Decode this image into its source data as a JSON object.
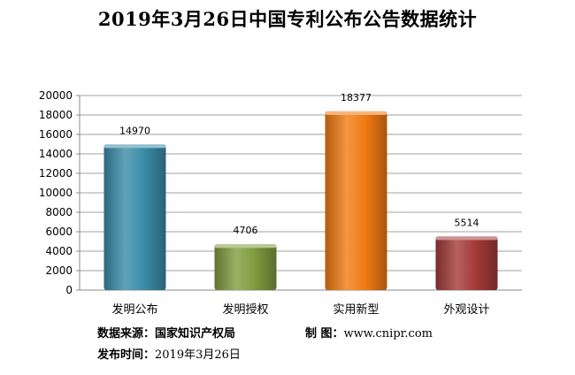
{
  "chart_data": {
    "type": "bar",
    "title": "2019年3月26日中国专利公布公告数据统计",
    "categories": [
      "发明公布",
      "发明授权",
      "实用新型",
      "外观设计"
    ],
    "values": [
      14970,
      4706,
      18377,
      5514
    ],
    "colors": [
      "#3b8ca8",
      "#7f9c3f",
      "#f07a12",
      "#a33a38"
    ],
    "ylim": [
      0,
      20000
    ],
    "yticks": [
      0,
      2000,
      4000,
      6000,
      8000,
      10000,
      12000,
      14000,
      16000,
      18000,
      20000
    ],
    "xlabel": "",
    "ylabel": "",
    "grid": true
  },
  "footer": {
    "source_label": "数据来源：",
    "source_value": "国家知识产权局",
    "maker_label": "制 图：",
    "maker_value": "www.cnipr.com",
    "date_label": "发布时间：",
    "date_value": "2019年3月26日"
  }
}
